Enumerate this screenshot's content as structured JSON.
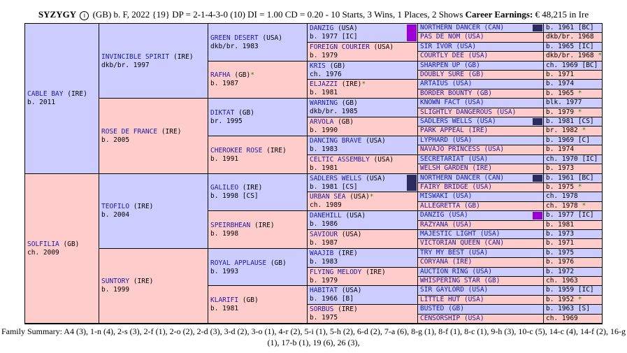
{
  "header": {
    "name": "SYZYGY",
    "info_icon": "info-icon",
    "detail": "(GB) b. F, 2022 {19} DP = 2-1-4-3-0 (10) DI = 1.00   CD = 0.20 - 10 Starts, 3 Wins, 1 Places, 2 Shows",
    "earnings_label": "Career Earnings:",
    "earnings_value": "€ 48,215 in Ire"
  },
  "colors": {
    "male": "#ccccff",
    "female": "#ffcccc",
    "star": "#1e8c1e",
    "link": "#1a1aa6",
    "mark_purple": "#9b00d3",
    "mark_dark": "#2b2b5e"
  },
  "gen1": [
    {
      "name": "CABLE BAY",
      "origin": "(IRE)",
      "detail": "b. 2011",
      "sex": "m"
    },
    {
      "name": "SOLFILIA",
      "origin": "(GB)",
      "detail": "ch. 2009",
      "sex": "f"
    }
  ],
  "gen2": [
    {
      "name": "INVINCIBLE SPIRIT",
      "origin": "(IRE)",
      "detail": "dkb/br. 1997",
      "sex": "m"
    },
    {
      "name": "ROSE DE FRANCE",
      "origin": "(IRE)",
      "detail": "b. 2005",
      "sex": "f"
    },
    {
      "name": "TEOFILO",
      "origin": "(IRE)",
      "detail": "b. 2004",
      "sex": "m"
    },
    {
      "name": "SUNTORY",
      "origin": "(IRE)",
      "detail": "b. 1999",
      "sex": "f"
    }
  ],
  "gen3": [
    {
      "name": "GREEN DESERT",
      "origin": "(USA)",
      "detail": "dkb/br. 1983",
      "sex": "m",
      "star": ""
    },
    {
      "name": "RAFHA",
      "origin": "(GB)",
      "detail": "b. 1987",
      "sex": "f",
      "star": "*"
    },
    {
      "name": "DIKTAT",
      "origin": "(GB)",
      "detail": "br. 1995",
      "sex": "m",
      "star": ""
    },
    {
      "name": "CHEROKEE ROSE",
      "origin": "(IRE)",
      "detail": "b. 1991",
      "sex": "f",
      "star": ""
    },
    {
      "name": "GALILEO",
      "origin": "(IRE)",
      "detail": "b. 1998 [CS]",
      "sex": "m",
      "star": ""
    },
    {
      "name": "SPEIRBHEAN",
      "origin": "(IRE)",
      "detail": "b. 1998",
      "sex": "f",
      "star": ""
    },
    {
      "name": "ROYAL APPLAUSE",
      "origin": "(GB)",
      "detail": "b. 1993",
      "sex": "m",
      "star": ""
    },
    {
      "name": "KLARIFI",
      "origin": "(GB)",
      "detail": "b. 1981",
      "sex": "f",
      "star": ""
    }
  ],
  "gen4": [
    {
      "name": "DANZIG",
      "origin": "(USA)",
      "detail": "b. 1977 [IC]",
      "sex": "m",
      "star": "",
      "mark": "purple"
    },
    {
      "name": "FOREIGN COURIER",
      "origin": "(USA)",
      "detail": "b. 1979",
      "sex": "f",
      "star": "",
      "mark": ""
    },
    {
      "name": "KRIS",
      "origin": "(GB)",
      "detail": "ch. 1976",
      "sex": "m",
      "star": "",
      "mark": ""
    },
    {
      "name": "ELJAZZI",
      "origin": "(IRE)",
      "detail": "b. 1981",
      "sex": "f",
      "star": "*",
      "mark": ""
    },
    {
      "name": "WARNING",
      "origin": "(GB)",
      "detail": "dkb/br. 1985",
      "sex": "m",
      "star": "",
      "mark": ""
    },
    {
      "name": "ARVOLA",
      "origin": "(GB)",
      "detail": "b. 1990",
      "sex": "f",
      "star": "",
      "mark": ""
    },
    {
      "name": "DANCING BRAVE",
      "origin": "(USA)",
      "detail": "b. 1983",
      "sex": "m",
      "star": "",
      "mark": ""
    },
    {
      "name": "CELTIC ASSEMBLY",
      "origin": "(USA)",
      "detail": "b. 1981",
      "sex": "f",
      "star": "",
      "mark": ""
    },
    {
      "name": "SADLERS WELLS",
      "origin": "(USA)",
      "detail": "b. 1981 [CS]",
      "sex": "m",
      "star": "",
      "mark": "dark"
    },
    {
      "name": "URBAN SEA",
      "origin": "(USA)",
      "detail": "ch. 1989",
      "sex": "f",
      "star": "*",
      "mark": ""
    },
    {
      "name": "DANEHILL",
      "origin": "(USA)",
      "detail": "b. 1986",
      "sex": "m",
      "star": "",
      "mark": ""
    },
    {
      "name": "SAVIOUR",
      "origin": "(USA)",
      "detail": "b. 1987",
      "sex": "f",
      "star": "",
      "mark": ""
    },
    {
      "name": "WAAJIB",
      "origin": "(IRE)",
      "detail": "b. 1983",
      "sex": "m",
      "star": "",
      "mark": ""
    },
    {
      "name": "FLYING MELODY",
      "origin": "(IRE)",
      "detail": "b. 1979",
      "sex": "f",
      "star": "",
      "mark": ""
    },
    {
      "name": "HABITAT",
      "origin": "(USA)",
      "detail": "b. 1966 [B]",
      "sex": "m",
      "star": "",
      "mark": ""
    },
    {
      "name": "SORBUS",
      "origin": "(IRE)",
      "detail": "b. 1975",
      "sex": "f",
      "star": "",
      "mark": ""
    }
  ],
  "gen5": [
    {
      "name": "NORTHERN DANCER",
      "origin": "(CAN)",
      "detail": "b. 1961 [BC]",
      "sex": "m",
      "star": "",
      "mark": "dark"
    },
    {
      "name": "PAS DE NOM",
      "origin": "(USA)",
      "detail": "dkb/br. 1968",
      "sex": "f",
      "star": "",
      "mark": ""
    },
    {
      "name": "SIR IVOR",
      "origin": "(USA)",
      "detail": "b. 1965 [IC]",
      "sex": "m",
      "star": "",
      "mark": ""
    },
    {
      "name": "COURTLY DEE",
      "origin": "(USA)",
      "detail": "dkb/br. 1968",
      "sex": "f",
      "star": "*",
      "mark": ""
    },
    {
      "name": "SHARPEN UP",
      "origin": "(GB)",
      "detail": "ch. 1969 [BC]",
      "sex": "m",
      "star": "",
      "mark": ""
    },
    {
      "name": "DOUBLY SURE",
      "origin": "(GB)",
      "detail": "b. 1971",
      "sex": "f",
      "star": "",
      "mark": ""
    },
    {
      "name": "ARTAIUS",
      "origin": "(USA)",
      "detail": "b. 1974",
      "sex": "m",
      "star": "",
      "mark": ""
    },
    {
      "name": "BORDER BOUNTY",
      "origin": "(GB)",
      "detail": "b. 1965",
      "sex": "f",
      "star": "*",
      "mark": ""
    },
    {
      "name": "KNOWN FACT",
      "origin": "(USA)",
      "detail": "blk. 1977",
      "sex": "m",
      "star": "",
      "mark": ""
    },
    {
      "name": "SLIGHTLY DANGEROUS",
      "origin": "(USA)",
      "detail": "b. 1979",
      "sex": "f",
      "star": "*",
      "mark": ""
    },
    {
      "name": "SADLERS WELLS",
      "origin": "(USA)",
      "detail": "b. 1981 [CS]",
      "sex": "m",
      "star": "",
      "mark": "dark"
    },
    {
      "name": "PARK APPEAL",
      "origin": "(IRE)",
      "detail": "br. 1982",
      "sex": "f",
      "star": "*",
      "mark": ""
    },
    {
      "name": "LYPHARD",
      "origin": "(USA)",
      "detail": "b. 1969 [C]",
      "sex": "m",
      "star": "",
      "mark": ""
    },
    {
      "name": "NAVAJO PRINCESS",
      "origin": "(USA)",
      "detail": "b. 1974",
      "sex": "f",
      "star": "",
      "mark": ""
    },
    {
      "name": "SECRETARIAT",
      "origin": "(USA)",
      "detail": "ch. 1970 [IC]",
      "sex": "m",
      "star": "",
      "mark": ""
    },
    {
      "name": "WELSH GARDEN",
      "origin": "(IRE)",
      "detail": "b. 1973",
      "sex": "f",
      "star": "",
      "mark": ""
    },
    {
      "name": "NORTHERN DANCER",
      "origin": "(CAN)",
      "detail": "b. 1961 [BC]",
      "sex": "m",
      "star": "",
      "mark": "dark"
    },
    {
      "name": "FAIRY BRIDGE",
      "origin": "(USA)",
      "detail": "b. 1975",
      "sex": "f",
      "star": "*",
      "mark": ""
    },
    {
      "name": "MISWAKI",
      "origin": "(USA)",
      "detail": "ch. 1978",
      "sex": "m",
      "star": "",
      "mark": ""
    },
    {
      "name": "ALLEGRETTA",
      "origin": "(GB)",
      "detail": "ch. 1978",
      "sex": "f",
      "star": "*",
      "mark": ""
    },
    {
      "name": "DANZIG",
      "origin": "(USA)",
      "detail": "b. 1977 [IC]",
      "sex": "m",
      "star": "",
      "mark": "purple"
    },
    {
      "name": "RAZYANA",
      "origin": "(USA)",
      "detail": "b. 1981",
      "sex": "f",
      "star": "",
      "mark": ""
    },
    {
      "name": "MAJESTIC LIGHT",
      "origin": "(USA)",
      "detail": "b. 1973",
      "sex": "m",
      "star": "",
      "mark": ""
    },
    {
      "name": "VICTORIAN QUEEN",
      "origin": "(CAN)",
      "detail": "b. 1971",
      "sex": "f",
      "star": "",
      "mark": ""
    },
    {
      "name": "TRY MY BEST",
      "origin": "(USA)",
      "detail": "b. 1975",
      "sex": "m",
      "star": "",
      "mark": ""
    },
    {
      "name": "CORYANA",
      "origin": "(IRE)",
      "detail": "b. 1976",
      "sex": "f",
      "star": "",
      "mark": ""
    },
    {
      "name": "AUCTION RING",
      "origin": "(USA)",
      "detail": "b. 1972",
      "sex": "m",
      "star": "",
      "mark": ""
    },
    {
      "name": "WHISPERING STAR",
      "origin": "(GB)",
      "detail": "ch. 1963",
      "sex": "f",
      "star": "",
      "mark": ""
    },
    {
      "name": "SIR GAYLORD",
      "origin": "(USA)",
      "detail": "b. 1959 [IC]",
      "sex": "m",
      "star": "",
      "mark": ""
    },
    {
      "name": "LITTLE HUT",
      "origin": "(USA)",
      "detail": "b. 1952",
      "sex": "f",
      "star": "*",
      "mark": ""
    },
    {
      "name": "BUSTED",
      "origin": "(GB)",
      "detail": "b. 1963 [S]",
      "sex": "m",
      "star": "",
      "mark": ""
    },
    {
      "name": "CENSORSHIP",
      "origin": "(USA)",
      "detail": "ch. 1969",
      "sex": "f",
      "star": "",
      "mark": ""
    }
  ],
  "footer": {
    "label": "Family Summary:",
    "text": "A4 (3), 1-n (4), 2-s (3), 2-f (1), 2-o (2), 2-d (3), 3-d (2), 3-o (1), 4-r (2), 5-i (1), 5-h (2), 6-d (2), 7-a (6), 8-g (1), 8-f (1), 8-c (1), 9-h (3), 10-c (5), 14-c (4), 14-f (2), 16-g (1), 17-b (1), 19 (6), 26 (3),"
  }
}
